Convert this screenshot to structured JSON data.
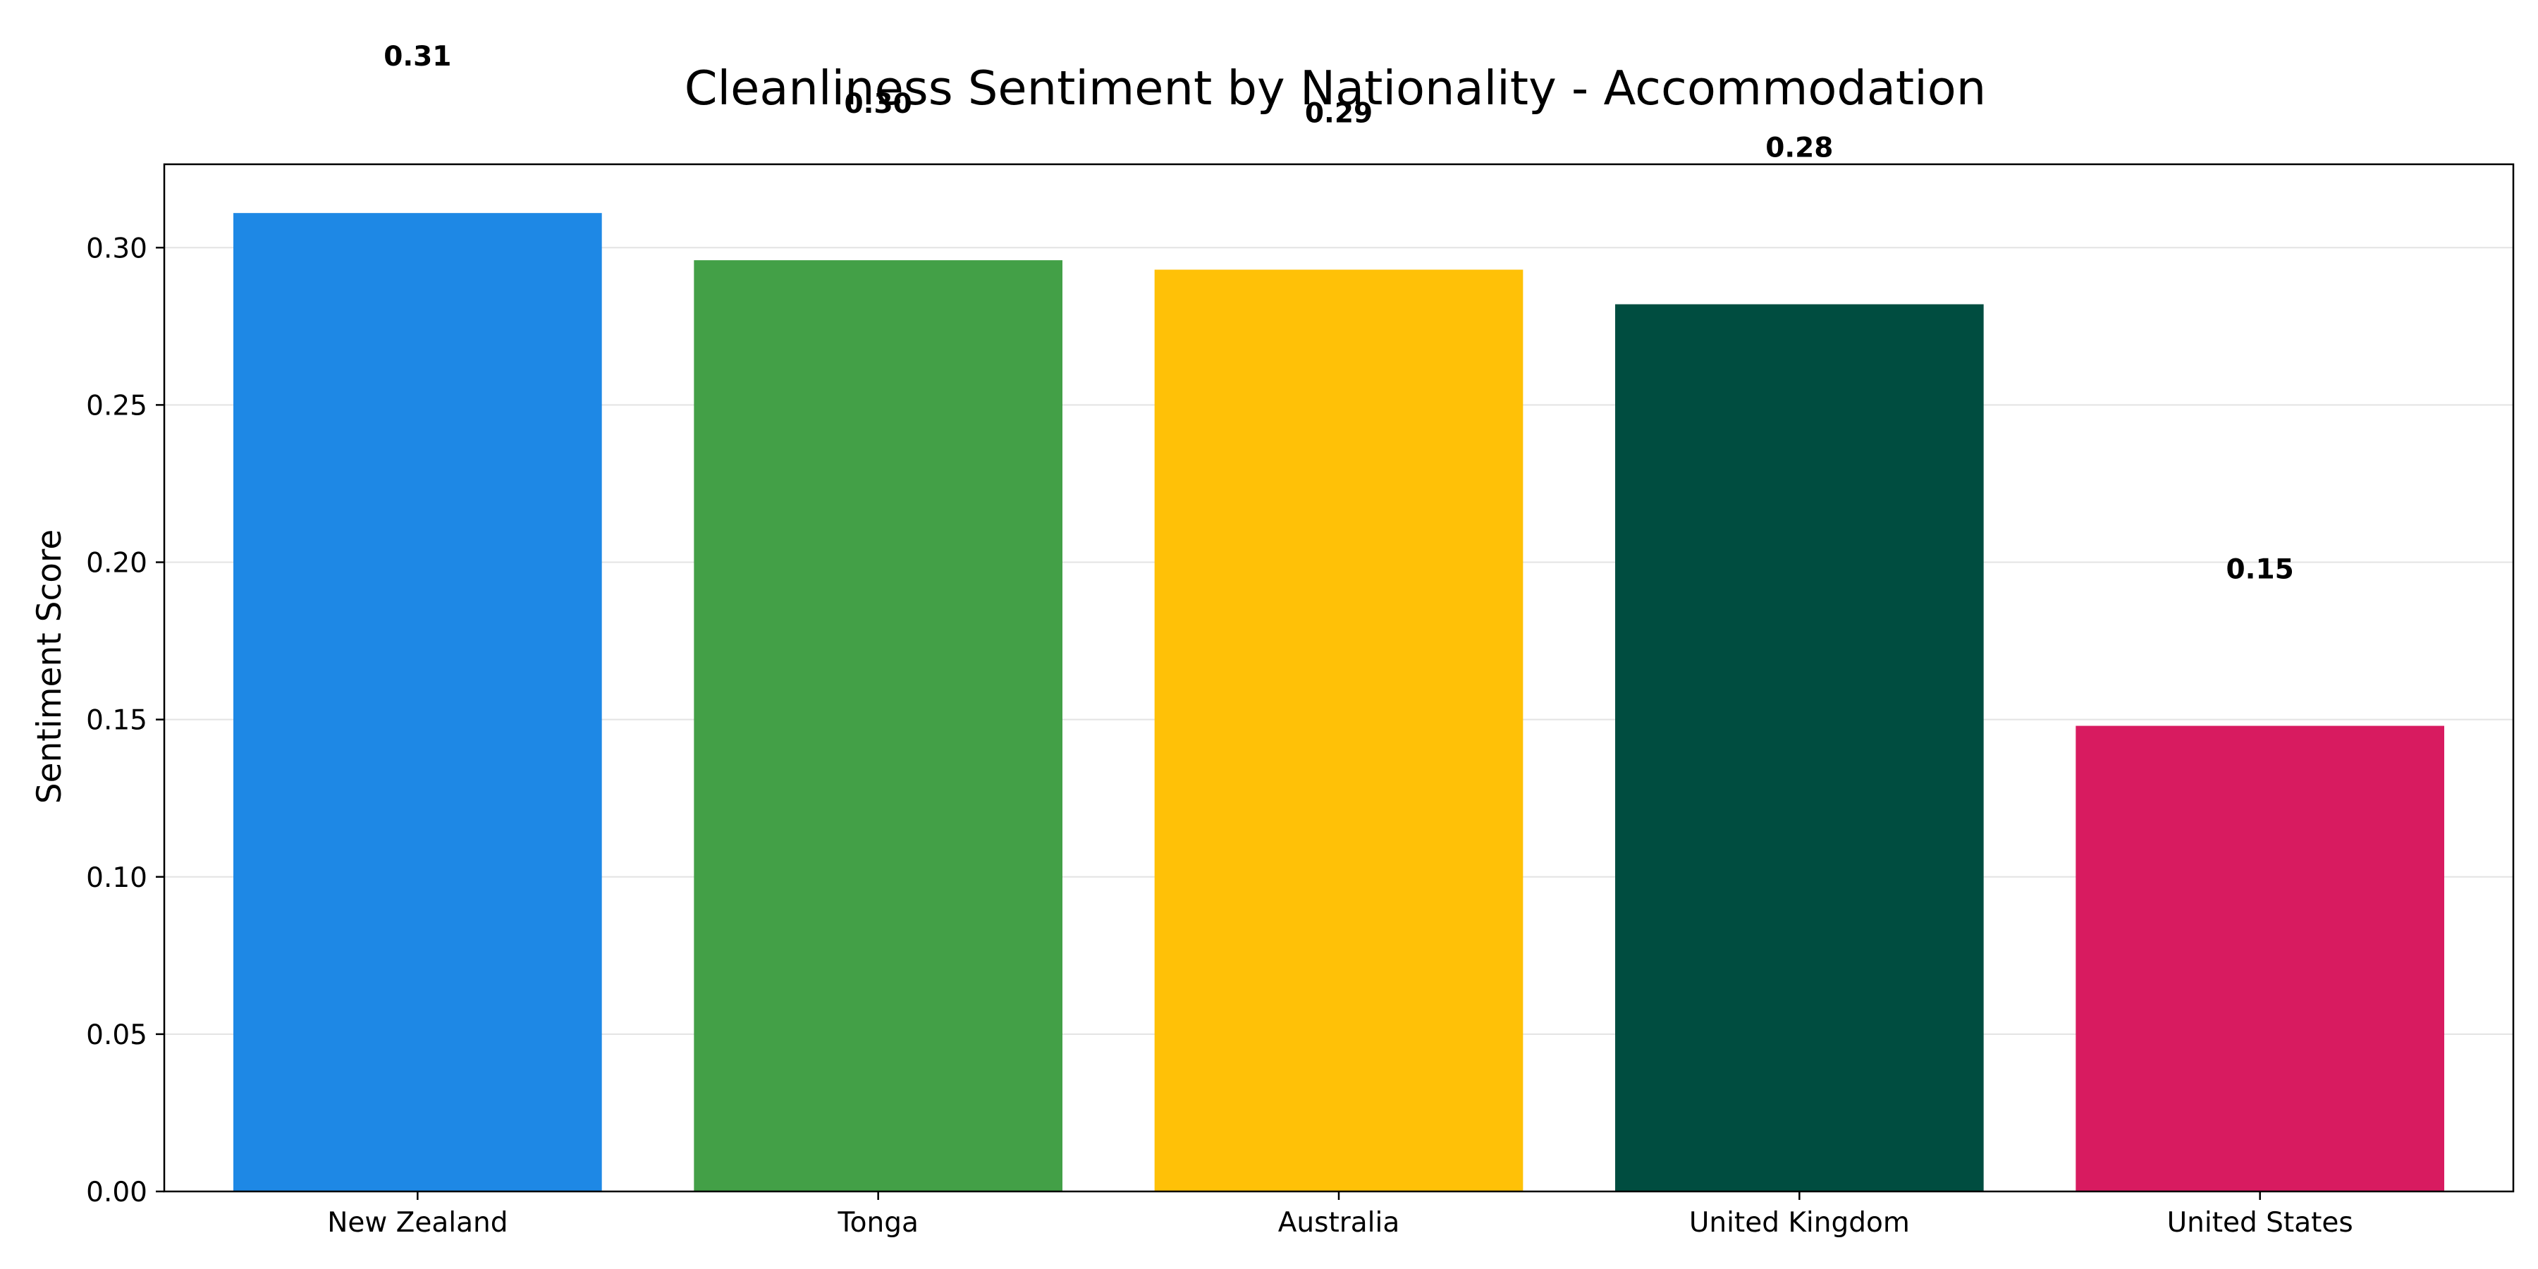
{
  "chart_data": {
    "type": "bar",
    "title": "Cleanliness Sentiment by Nationality - Accommodation",
    "xlabel": "",
    "ylabel": "Sentiment Score",
    "categories": [
      "New Zealand",
      "Tonga",
      "Australia",
      "United Kingdom",
      "United States"
    ],
    "values": [
      0.311,
      0.296,
      0.293,
      0.282,
      0.148
    ],
    "value_labels": [
      "0.31",
      "0.30",
      "0.29",
      "0.28",
      "0.15"
    ],
    "colors": [
      "#1E88E5",
      "#43A047",
      "#FFC107",
      "#004D40",
      "#D81B60"
    ],
    "ylim": [
      0,
      0.3265
    ],
    "yticks": [
      0.0,
      0.05,
      0.1,
      0.15,
      0.2,
      0.25,
      0.3
    ],
    "ytick_labels": [
      "0.00",
      "0.05",
      "0.10",
      "0.15",
      "0.20",
      "0.25",
      "0.30"
    ],
    "grid": "y",
    "legend": "none"
  }
}
